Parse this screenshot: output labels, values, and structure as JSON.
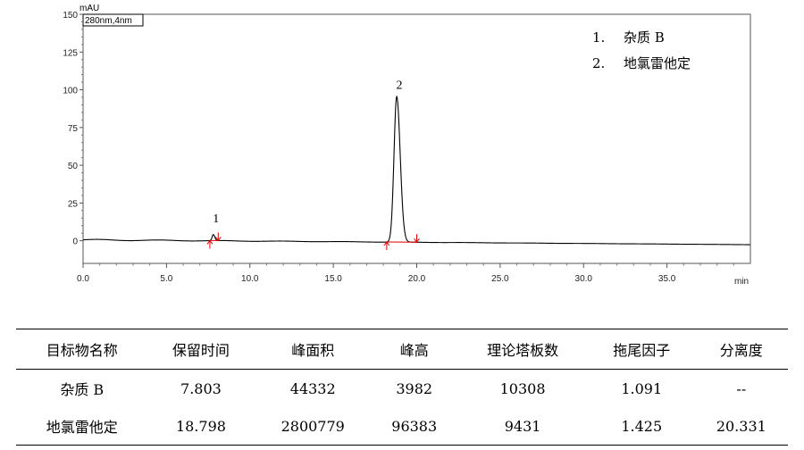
{
  "chart_data": {
    "type": "line",
    "ylabel": "mAU",
    "xlabel": "min",
    "detector_label": "280nm,4nm",
    "xlim": [
      0,
      40
    ],
    "ylim": [
      -15,
      150
    ],
    "x_ticks": [
      "0.0",
      "5.0",
      "10.0",
      "15.0",
      "20.0",
      "25.0",
      "30.0",
      "35.0"
    ],
    "y_ticks": [
      "0",
      "25",
      "50",
      "75",
      "100",
      "125",
      "150"
    ],
    "peaks": [
      {
        "label": "1",
        "rt": 7.803,
        "height": 3.982,
        "start": 7.6,
        "end": 8.1
      },
      {
        "label": "2",
        "rt": 18.798,
        "height": 96.383,
        "start": 18.2,
        "end": 20.0
      }
    ],
    "legend": [
      "1.",
      "杂质 B",
      "2.",
      "地氯雷他定"
    ],
    "grid": false
  },
  "table": {
    "headers": [
      "目标物名称",
      "保留时间",
      "峰面积",
      "峰高",
      "理论塔板数",
      "拖尾因子",
      "分离度"
    ],
    "rows": [
      [
        "杂质 B",
        "7.803",
        "44332",
        "3982",
        "10308",
        "1.091",
        "--"
      ],
      [
        "地氯雷他定",
        "18.798",
        "2800779",
        "96383",
        "9431",
        "1.425",
        "20.331"
      ]
    ]
  }
}
